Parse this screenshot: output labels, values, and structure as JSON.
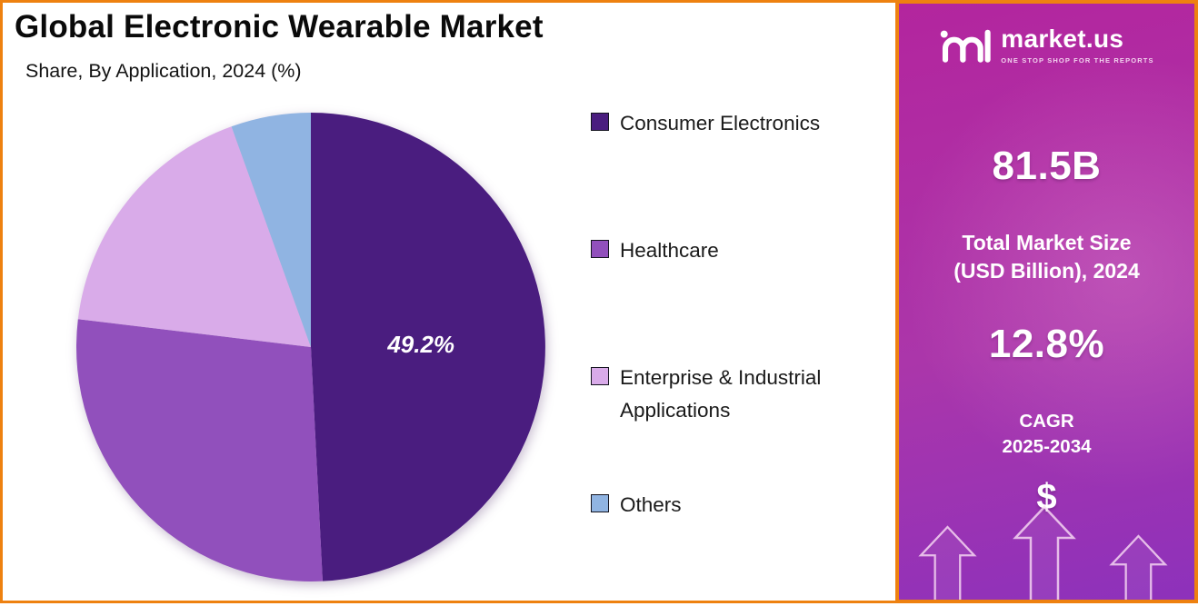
{
  "title": "Global Electronic Wearable Market",
  "subtitle": "Share, By Application, 2024 (%)",
  "chart_data": {
    "type": "pie",
    "title": "Global Electronic Wearable Market",
    "subtitle": "Share, By Application, 2024 (%)",
    "unit": "%",
    "start_angle": "top",
    "direction": "clockwise",
    "legend_position": "right",
    "series": [
      {
        "name": "Consumer Electronics",
        "value": 49.2,
        "label": "49.2%",
        "color": "#4a1d7f"
      },
      {
        "name": "Healthcare",
        "value": 27.7,
        "color": "#9150bc"
      },
      {
        "name": "Enterprise & Industrial Applications",
        "value": 17.6,
        "color": "#d9abe9"
      },
      {
        "name": "Others",
        "value": 5.5,
        "color": "#90b4e2"
      }
    ]
  },
  "sidebar": {
    "logo_text": "market.us",
    "logo_tagline": "ONE STOP SHOP FOR THE REPORTS",
    "market_size_value": "81.5B",
    "market_size_label_line1": "Total Market Size",
    "market_size_label_line2": "(USD Billion), 2024",
    "cagr_value": "12.8%",
    "cagr_label_line1": "CAGR",
    "cagr_label_line2": "2025-2034",
    "dollar_symbol": "$"
  },
  "colors": {
    "border_orange": "#ee8110",
    "panel_top": "#b3259e",
    "panel_mid": "#ab36aa",
    "panel_bottom": "#8d31bb",
    "slice_label": "#ffffff",
    "legend_text": "#1a1a1a",
    "title_text": "#0a0a0a",
    "panel_text": "#ffffff"
  }
}
